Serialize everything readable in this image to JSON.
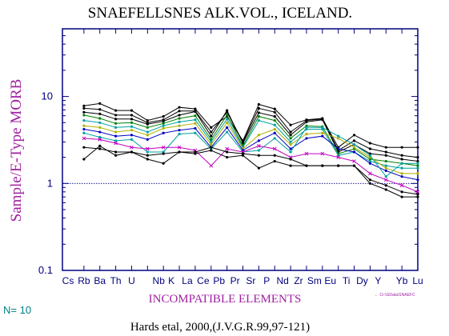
{
  "chart_data": {
    "type": "line",
    "title": "SNAEFELLSNES ALK.VOL., ICELAND.",
    "ylabel": "Sample/E-Type MORB",
    "xlabel": "INCOMPATIBLE ELEMENTS",
    "y_scale": "log",
    "ylim": [
      0.1,
      60
    ],
    "y_ticks": [
      {
        "value": 10,
        "label": "10"
      },
      {
        "value": 1,
        "label": "1"
      },
      {
        "value": 0.1,
        "label": "0.1"
      }
    ],
    "reference_line": 1,
    "x_labels": [
      "Cs",
      "Rb",
      "Ba",
      "Th",
      "U",
      "Nb",
      "K",
      "La",
      "Ce",
      "Pb",
      "Pr",
      "Sr",
      "P",
      "Nd",
      "Zr",
      "Sm",
      "Eu",
      "Ti",
      "Dy",
      "Y",
      "Yb",
      "Lu"
    ],
    "x_label_positions": [
      0,
      1,
      2,
      3,
      4,
      5.7,
      6.5,
      7.5,
      8.5,
      9.5,
      10.5,
      11.5,
      12.5,
      13.5,
      14.5,
      15.5,
      16.5,
      17.5,
      18.5,
      19.5,
      21,
      22
    ],
    "points_x": [
      1,
      2,
      3,
      4,
      5,
      6,
      7,
      8,
      9,
      10,
      11,
      12,
      13,
      14,
      15,
      16,
      17,
      18,
      19,
      20,
      21,
      22
    ],
    "series": [
      {
        "color": "#000000",
        "marker": "dot",
        "values": [
          7.8,
          8.3,
          6.9,
          6.9,
          5.3,
          5.9,
          7.5,
          7.2,
          4.4,
          5.9,
          3.1,
          8.1,
          7.2,
          4.7,
          5.4,
          5.6,
          2.6,
          3.6,
          2.9,
          2.6,
          2.6,
          2.6
        ]
      },
      {
        "color": "#000000",
        "marker": "dot",
        "values": [
          7.3,
          7.1,
          6.1,
          6.1,
          5.0,
          5.4,
          6.8,
          6.8,
          3.9,
          6.6,
          3.0,
          7.3,
          6.6,
          3.9,
          5.3,
          5.5,
          2.4,
          3.1,
          2.5,
          2.3,
          2.1,
          2.0
        ]
      },
      {
        "color": "#000000",
        "marker": "dot",
        "values": [
          6.6,
          6.3,
          5.5,
          5.5,
          4.8,
          5.2,
          6.1,
          6.7,
          3.5,
          6.9,
          2.9,
          6.5,
          5.9,
          3.6,
          5.1,
          5.4,
          2.3,
          2.8,
          2.2,
          2.1,
          1.9,
          1.8
        ]
      },
      {
        "color": "#008000",
        "marker": "dot",
        "values": [
          6.1,
          5.6,
          4.9,
          5.0,
          4.4,
          4.9,
          5.6,
          6.0,
          3.2,
          6.1,
          2.7,
          5.9,
          5.3,
          3.3,
          4.6,
          4.5,
          2.2,
          2.5,
          1.9,
          1.8,
          1.7,
          1.6
        ]
      },
      {
        "color": "#00a0a0",
        "marker": "dot",
        "values": [
          5.3,
          5.0,
          4.4,
          4.5,
          3.9,
          4.6,
          5.1,
          5.4,
          3.0,
          5.5,
          2.6,
          5.3,
          4.7,
          3.0,
          4.2,
          4.2,
          2.1,
          2.3,
          1.8,
          1.6,
          1.5,
          1.5
        ]
      },
      {
        "color": "#b0b000",
        "marker": "dot",
        "values": [
          4.6,
          4.4,
          3.9,
          4.1,
          3.6,
          4.3,
          4.6,
          4.9,
          2.8,
          5.0,
          2.5,
          3.6,
          4.2,
          2.8,
          3.7,
          3.8,
          3.3,
          2.6,
          2.0,
          1.5,
          1.3,
          1.3
        ]
      },
      {
        "color": "#0000c0",
        "marker": "dot",
        "values": [
          4.2,
          3.9,
          3.5,
          3.6,
          3.2,
          3.8,
          4.1,
          4.3,
          2.6,
          4.4,
          2.4,
          3.1,
          3.8,
          2.5,
          3.3,
          3.5,
          2.5,
          2.3,
          1.7,
          1.4,
          1.2,
          1.1
        ]
      },
      {
        "color": "#00a0a0",
        "marker": "dot",
        "values": [
          3.8,
          3.4,
          3.1,
          3.2,
          2.3,
          2.3,
          3.7,
          3.8,
          2.5,
          3.9,
          2.3,
          2.4,
          3.3,
          2.3,
          4.4,
          4.4,
          3.5,
          2.8,
          2.1,
          1.2,
          1.7,
          1.7
        ]
      },
      {
        "color": "#c000c0",
        "marker": "x",
        "values": [
          3.3,
          3.2,
          2.9,
          2.6,
          2.5,
          2.6,
          2.6,
          2.4,
          1.6,
          2.5,
          2.3,
          2.7,
          2.5,
          2.0,
          2.2,
          2.2,
          2.0,
          1.8,
          1.3,
          1.1,
          0.95,
          0.8
        ]
      },
      {
        "color": "#000000",
        "marker": "dot",
        "values": [
          2.6,
          2.5,
          2.3,
          2.3,
          2.1,
          2.2,
          2.3,
          2.3,
          2.6,
          2.3,
          2.2,
          2.1,
          2.1,
          1.9,
          1.6,
          1.6,
          1.6,
          1.6,
          1.1,
          0.95,
          0.8,
          0.75
        ]
      },
      {
        "color": "#000000",
        "marker": "dot",
        "values": [
          1.9,
          2.7,
          2.1,
          2.3,
          1.9,
          1.7,
          2.3,
          2.2,
          2.4,
          2.0,
          2.1,
          1.5,
          1.8,
          1.6,
          1.6,
          1.6,
          1.6,
          1.6,
          1.0,
          0.85,
          0.7,
          0.7
        ]
      }
    ],
    "grid": false,
    "legend": "none"
  },
  "count_label": "N= 10",
  "path_note": "Cr:\\GData\\SNAEFC",
  "reference": "Hards etal, 2000,(J.V.G.R.99,97-121)",
  "colors": {
    "frame": "#000080",
    "ylabel": "#a020a0",
    "xlabel": "#a020a0",
    "x_tick_labels": "#000080",
    "count_label": "#008080",
    "path_note": "#a020a0"
  }
}
